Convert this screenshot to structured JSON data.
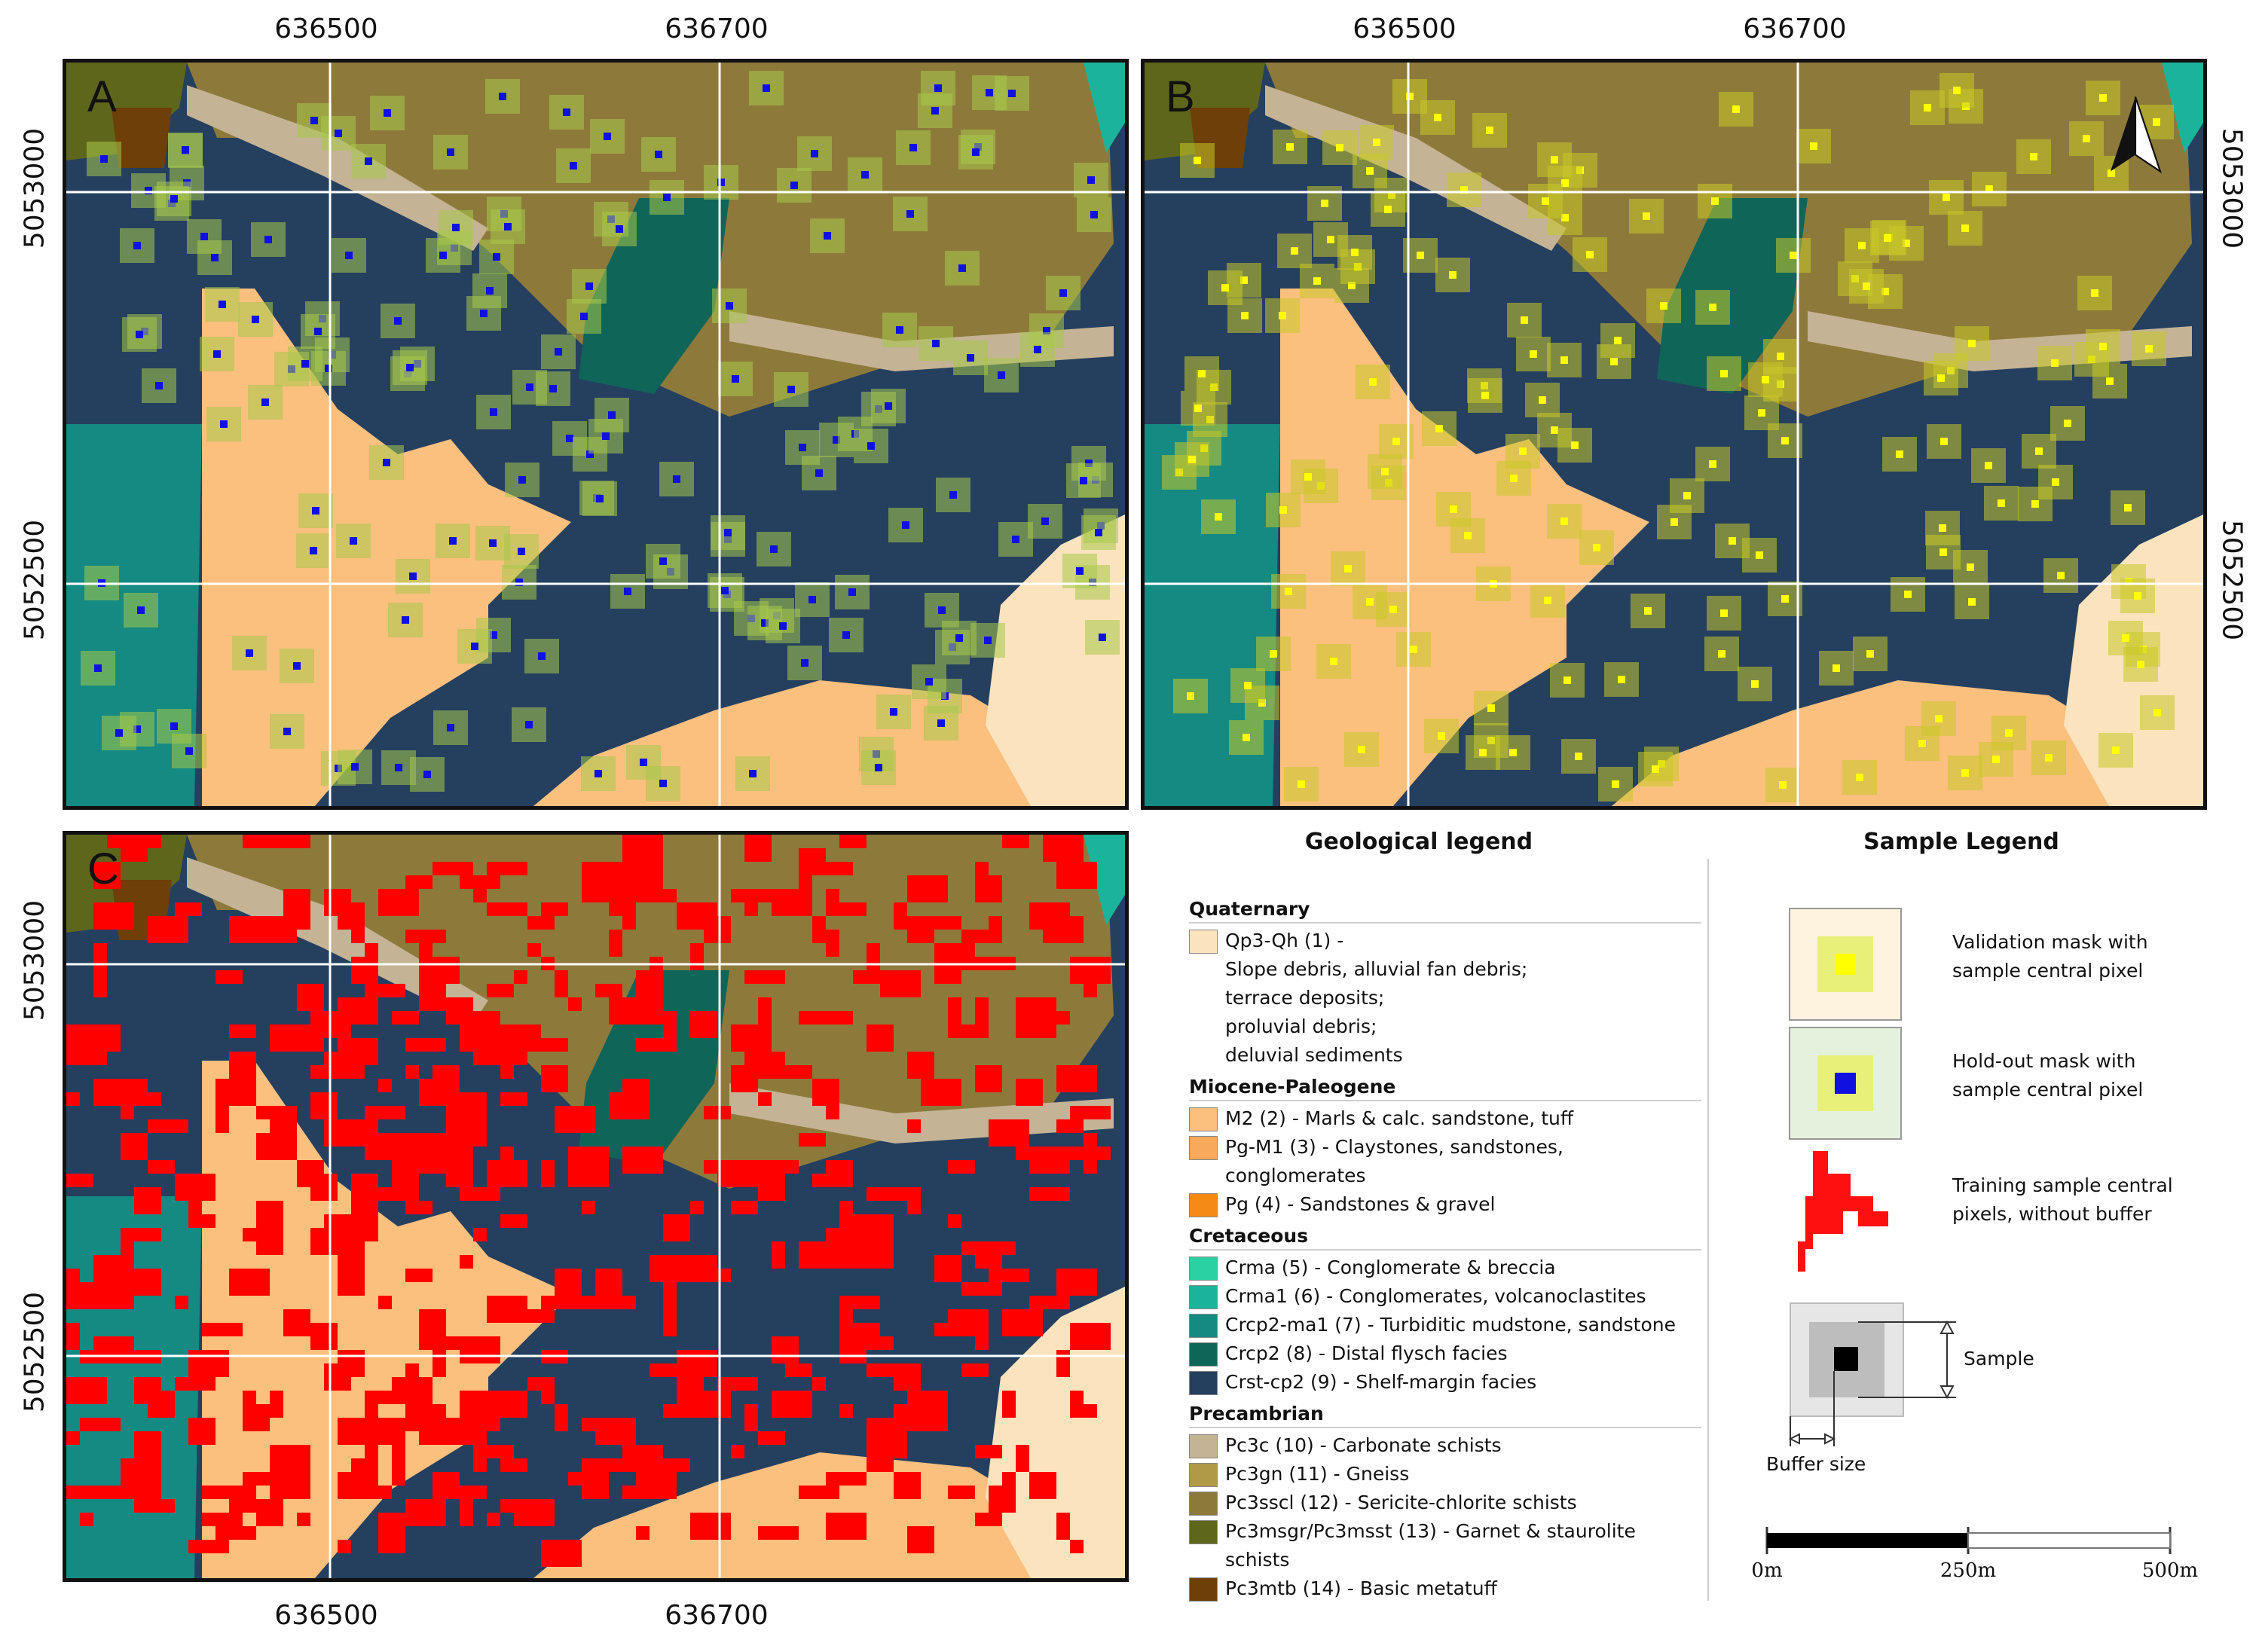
{
  "coords": {
    "easting": [
      "636500",
      "636700"
    ],
    "northing": [
      "5053000",
      "5052500"
    ]
  },
  "panels": [
    {
      "letter": "A",
      "buffer_fill": "#a8c84a",
      "pixel_color": "#1010e0"
    },
    {
      "letter": "B",
      "buffer_fill": "#c8c828",
      "pixel_color": "#ffff00"
    },
    {
      "letter": "C",
      "training_color": "#ff0000"
    }
  ],
  "legend": {
    "geological_title": "Geological legend",
    "sample_title": "Sample Legend"
  },
  "geology_groups": [
    {
      "title": "Quaternary",
      "items": [
        {
          "color": "#fbe3bd",
          "text": "Qp3-Qh (1) -\nSlope debris, alluvial fan debris;\nterrace deposits;\nproluvial debris;\ndeluvial sediments"
        }
      ]
    },
    {
      "title": "Miocene-Paleogene",
      "items": [
        {
          "color": "#fbbf7e",
          "text": "M2 (2) - Marls & calc. sandstone, tuff"
        },
        {
          "color": "#f8a95c",
          "text": "Pg-M1 (3) - Claystones, sandstones, conglomerates"
        },
        {
          "color": "#f58a14",
          "text": "Pg (4) - Sandstones & gravel"
        }
      ]
    },
    {
      "title": "Cretaceous",
      "items": [
        {
          "color": "#2ad1a2",
          "text": "Crma (5) - Conglomerate & breccia"
        },
        {
          "color": "#1bb49a",
          "text": "Crma1 (6) -  Conglomerates, volcanoclastites"
        },
        {
          "color": "#148a82",
          "text": "Crcp2-ma1 (7) - Turbiditic mudstone, sandstone"
        },
        {
          "color": "#0f6558",
          "text": "Crcp2 (8) - Distal flysch facies"
        },
        {
          "color": "#253f5f",
          "text": "Crst-cp2 (9) - Shelf-margin facies"
        }
      ]
    },
    {
      "title": "Precambrian",
      "items": [
        {
          "color": "#c4b394",
          "text": "Pc3c (10) - Carbonate schists"
        },
        {
          "color": "#b09a48",
          "text": "Pc3gn (11) - Gneiss"
        },
        {
          "color": "#8d7a3b",
          "text": "Pc3sscl (12) - Sericite-chlorite schists"
        },
        {
          "color": "#5e661c",
          "text": "Pc3msgr/Pc3msst (13) - Garnet & staurolite schists"
        },
        {
          "color": "#6e3f08",
          "text": "Pc3mtb (14) - Basic metatuff"
        }
      ]
    }
  ],
  "sample_legend": {
    "validation": "Validation mask with\nsample central pixel",
    "holdout": "Hold-out mask with\nsample central pixel",
    "training": "Training sample central\npixels, without buffer",
    "sample": "Sample",
    "buffer": "Buffer size"
  },
  "scale_bar": {
    "labels": [
      "0m",
      "250m",
      "500m"
    ]
  }
}
